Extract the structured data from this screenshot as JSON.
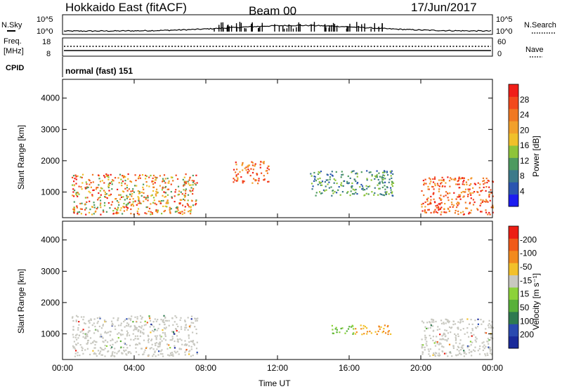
{
  "header": {
    "radar": "Hokkaido East (fitACF)",
    "beam": "Beam 00",
    "date": "17/Jun/2017"
  },
  "noise_panel": {
    "left_label": "N.Sky",
    "right_label": "N.Search",
    "left_ticks": [
      "10^5",
      "10^0"
    ],
    "right_ticks": [
      "10^5",
      "10^0"
    ]
  },
  "freq_panel": {
    "left_label_1": "Freq.",
    "left_label_2": "[MHz]",
    "left_ticks": [
      "18",
      "8"
    ],
    "right_label": "Nave",
    "right_ticks": [
      "60",
      "0"
    ],
    "cpid_label": "CPID",
    "cpid_text": "normal (fast) 151"
  },
  "chart_data": [
    {
      "type": "heatmap",
      "panel": "power",
      "ylabel": "Slant Range [km]",
      "xlabel": "",
      "x_ticks": [
        "00:00",
        "04:00",
        "08:00",
        "12:00",
        "16:00",
        "20:00",
        "00:00"
      ],
      "y_ticks": [
        "1000",
        "2000",
        "3000",
        "4000"
      ],
      "ylim": [
        180,
        4600
      ],
      "colorbar_label": "Power [dB]",
      "colorbar_ticks": [
        "4",
        "8",
        "12",
        "16",
        "20",
        "24",
        "28"
      ],
      "colorbar_colors": [
        "#1c1cf0",
        "#2a55b0",
        "#3c7a8a",
        "#4e9a60",
        "#8ec43a",
        "#f0c02a",
        "#f2a02a",
        "#f07822",
        "#f24a1c",
        "#f01e18"
      ],
      "regions": [
        {
          "t0": 0.5,
          "t1": 7.5,
          "r0": 300,
          "r1": 1600,
          "level": "high-mixed"
        },
        {
          "t0": 9.5,
          "t1": 11.5,
          "r0": 1300,
          "r1": 2000,
          "level": "high"
        },
        {
          "t0": 13.8,
          "t1": 18.5,
          "r0": 900,
          "r1": 1700,
          "level": "low"
        },
        {
          "t0": 20.0,
          "t1": 24.0,
          "r0": 300,
          "r1": 1500,
          "level": "high"
        }
      ]
    },
    {
      "type": "heatmap",
      "panel": "velocity",
      "ylabel": "Slant Range [km]",
      "xlabel": "Time UT",
      "x_ticks": [
        "00:00",
        "04:00",
        "08:00",
        "12:00",
        "16:00",
        "20:00",
        "00:00"
      ],
      "y_ticks": [
        "1000",
        "2000",
        "3000",
        "4000"
      ],
      "ylim": [
        180,
        4600
      ],
      "colorbar_label": "Velocity [m s⁻¹]",
      "colorbar_ticks": [
        "200",
        "100",
        "50",
        "15",
        "-15",
        "-50",
        "-100",
        "-200"
      ],
      "colorbar_colors": [
        "#1a2a9a",
        "#2a4ab0",
        "#2e7a50",
        "#58b03a",
        "#8cd23a",
        "#c8c8c0",
        "#f2c02a",
        "#f28a1e",
        "#f05a18",
        "#ec1e14"
      ],
      "regions": [
        {
          "t0": 0.5,
          "t1": 7.5,
          "r0": 300,
          "r1": 1600,
          "level": "ground-scatter"
        },
        {
          "t0": 15.0,
          "t1": 16.3,
          "r0": 1000,
          "r1": 1300,
          "level": "positive"
        },
        {
          "t0": 16.3,
          "t1": 18.3,
          "r0": 1000,
          "r1": 1300,
          "level": "negative"
        },
        {
          "t0": 20.0,
          "t1": 24.0,
          "r0": 300,
          "r1": 1500,
          "level": "ground-scatter"
        }
      ]
    }
  ]
}
